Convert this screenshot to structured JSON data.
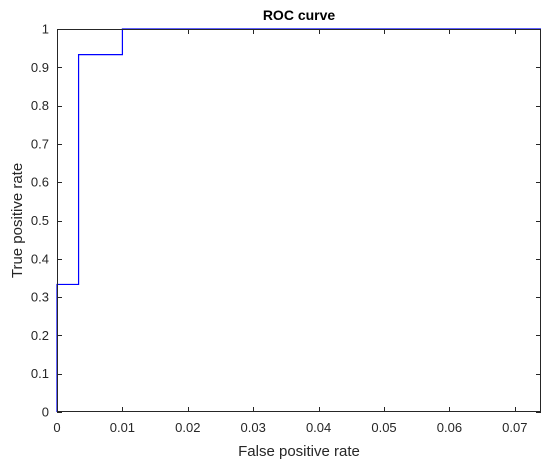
{
  "chart_data": {
    "type": "line",
    "title": "ROC curve",
    "xlabel": "False positive rate",
    "ylabel": "True positive rate",
    "xlim": [
      0,
      0.074
    ],
    "ylim": [
      0,
      1
    ],
    "grid": false,
    "x_ticks": [
      0,
      0.01,
      0.02,
      0.03,
      0.04,
      0.05,
      0.06,
      0.07
    ],
    "x_tick_labels": [
      "0",
      "0.01",
      "0.02",
      "0.03",
      "0.04",
      "0.05",
      "0.06",
      "0.07"
    ],
    "y_ticks": [
      0,
      0.1,
      0.2,
      0.3,
      0.4,
      0.5,
      0.6,
      0.7,
      0.8,
      0.9,
      1
    ],
    "y_tick_labels": [
      "0",
      "0.1",
      "0.2",
      "0.3",
      "0.4",
      "0.5",
      "0.6",
      "0.7",
      "0.8",
      "0.9",
      "1"
    ],
    "series": [
      {
        "color": "#0000ff",
        "x": [
          0,
          0,
          0.0033,
          0.0033,
          0.01,
          0.01,
          0.074
        ],
        "y": [
          0,
          0.333,
          0.333,
          0.933,
          0.933,
          1,
          1
        ]
      }
    ]
  }
}
